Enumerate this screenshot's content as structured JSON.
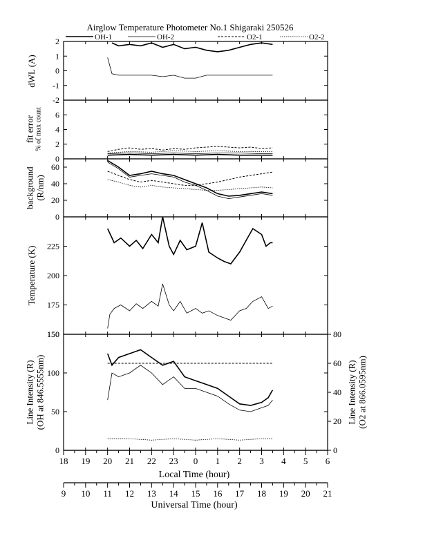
{
  "title": "Airglow Temperature Photometer No.1 Shigaraki 250526",
  "legend": [
    {
      "name": "OH-1",
      "dash": "",
      "width": 1.6
    },
    {
      "name": "OH-2",
      "dash": "",
      "width": 0.8
    },
    {
      "name": "O2-1",
      "dash": "3,2",
      "width": 1.0
    },
    {
      "name": "O2-2",
      "dash": "1.5,1.5",
      "width": 0.8
    }
  ],
  "axes": {
    "local_time_label": "Local Time (hour)",
    "local_time_ticks": [
      "18",
      "19",
      "20",
      "21",
      "22",
      "23",
      "0",
      "1",
      "2",
      "3",
      "4",
      "5",
      "6"
    ],
    "universal_time_label": "Universal Time (hour)",
    "universal_time_ticks": [
      "9",
      "10",
      "11",
      "12",
      "13",
      "14",
      "15",
      "16",
      "17",
      "18",
      "19",
      "20",
      "21"
    ]
  },
  "chart_data": [
    {
      "type": "line",
      "panel": "dwl",
      "ylabel": "dWL (A)",
      "ylim": [
        -2,
        2
      ],
      "yticks": [
        "2",
        "1",
        "0",
        "-1",
        "-2"
      ],
      "x_unit": "local time (hour)",
      "series": [
        {
          "name": "OH-1",
          "x": [
            20.2,
            20.5,
            21.0,
            21.5,
            22.0,
            22.5,
            23.0,
            23.5,
            0.0,
            0.5,
            1.0,
            1.5,
            2.0,
            2.5,
            3.0,
            3.5
          ],
          "values": [
            1.9,
            1.7,
            1.8,
            1.7,
            1.9,
            1.6,
            1.8,
            1.5,
            1.6,
            1.4,
            1.3,
            1.4,
            1.6,
            1.8,
            1.9,
            1.8
          ]
        },
        {
          "name": "OH-2",
          "x": [
            20.0,
            20.2,
            20.5,
            21.0,
            21.5,
            22.0,
            22.5,
            23.0,
            23.5,
            0.0,
            0.5,
            1.0,
            1.5,
            2.0,
            2.5,
            3.0,
            3.5
          ],
          "values": [
            0.9,
            -0.2,
            -0.3,
            -0.3,
            -0.3,
            -0.3,
            -0.4,
            -0.3,
            -0.5,
            -0.5,
            -0.3,
            -0.3,
            -0.3,
            -0.3,
            -0.3,
            -0.3,
            -0.3
          ]
        }
      ]
    },
    {
      "type": "line",
      "panel": "fit_error",
      "ylabel": "fit error % of max count",
      "ylim": [
        0,
        8
      ],
      "yticks": [
        "6",
        "4",
        "2",
        "0"
      ],
      "series": [
        {
          "name": "OH-1",
          "x": [
            20.0,
            21.0,
            22.0,
            23.0,
            0.0,
            1.0,
            2.0,
            3.0,
            3.5
          ],
          "values": [
            0.5,
            0.6,
            0.5,
            0.6,
            0.5,
            0.6,
            0.5,
            0.5,
            0.5
          ]
        },
        {
          "name": "OH-2",
          "x": [
            20.0,
            21.0,
            22.0,
            23.0,
            0.0,
            1.0,
            2.0,
            3.0,
            3.5
          ],
          "values": [
            0.7,
            0.8,
            0.7,
            0.8,
            0.7,
            0.8,
            0.8,
            0.7,
            0.7
          ]
        },
        {
          "name": "O2-1",
          "x": [
            20.0,
            20.5,
            21.0,
            21.5,
            22.0,
            22.5,
            23.0,
            23.5,
            0.0,
            0.5,
            1.0,
            1.5,
            2.0,
            2.5,
            3.0,
            3.5
          ],
          "values": [
            1.0,
            1.3,
            1.5,
            1.3,
            1.4,
            1.2,
            1.4,
            1.3,
            1.5,
            1.6,
            1.7,
            1.6,
            1.5,
            1.6,
            1.4,
            1.5
          ]
        },
        {
          "name": "O2-2",
          "x": [
            20.0,
            21.0,
            22.0,
            23.0,
            0.0,
            1.0,
            2.0,
            3.0,
            3.5
          ],
          "values": [
            0.8,
            1.0,
            0.9,
            1.1,
            1.0,
            1.1,
            1.0,
            1.0,
            1.0
          ]
        }
      ]
    },
    {
      "type": "line",
      "panel": "background",
      "ylabel": "background (R/nm)",
      "ylim": [
        0,
        70
      ],
      "yticks": [
        "60",
        "40",
        "20",
        "0"
      ],
      "series": [
        {
          "name": "OH-1",
          "x": [
            20.0,
            20.5,
            21.0,
            21.5,
            22.0,
            22.5,
            23.0,
            23.5,
            0.0,
            0.5,
            1.0,
            1.5,
            2.0,
            2.5,
            3.0,
            3.5
          ],
          "values": [
            68,
            60,
            50,
            52,
            55,
            52,
            50,
            45,
            40,
            35,
            28,
            25,
            26,
            28,
            30,
            28
          ]
        },
        {
          "name": "OH-2",
          "x": [
            20.0,
            20.5,
            21.0,
            21.5,
            22.0,
            22.5,
            23.0,
            23.5,
            0.0,
            0.5,
            1.0,
            1.5,
            2.0,
            2.5,
            3.0,
            3.5
          ],
          "values": [
            66,
            58,
            48,
            50,
            52,
            50,
            48,
            42,
            38,
            32,
            25,
            22,
            24,
            26,
            28,
            26
          ]
        },
        {
          "name": "O2-1",
          "x": [
            20.0,
            20.5,
            21.0,
            21.5,
            22.0,
            22.5,
            23.0,
            23.5,
            0.0,
            0.5,
            1.0,
            1.5,
            2.0,
            2.5,
            3.0,
            3.5
          ],
          "values": [
            55,
            50,
            45,
            42,
            44,
            42,
            40,
            38,
            38,
            40,
            42,
            45,
            48,
            50,
            52,
            54
          ]
        },
        {
          "name": "O2-2",
          "x": [
            20.0,
            20.5,
            21.0,
            21.5,
            22.0,
            22.5,
            23.0,
            23.5,
            0.0,
            0.5,
            1.0,
            1.5,
            2.0,
            2.5,
            3.0,
            3.5
          ],
          "values": [
            45,
            42,
            38,
            36,
            38,
            36,
            35,
            34,
            33,
            32,
            32,
            33,
            34,
            35,
            36,
            35
          ]
        }
      ]
    },
    {
      "type": "line",
      "panel": "temperature",
      "ylabel": "Temperature (K)",
      "ylim": [
        150,
        250
      ],
      "yticks": [
        "225",
        "200",
        "175",
        "150"
      ],
      "series": [
        {
          "name": "OH-1",
          "x": [
            20.0,
            20.3,
            20.6,
            21.0,
            21.3,
            21.6,
            22.0,
            22.3,
            22.5,
            22.8,
            23.0,
            23.3,
            23.6,
            0.0,
            0.3,
            0.6,
            1.0,
            1.3,
            1.6,
            2.0,
            2.3,
            2.6,
            3.0,
            3.2,
            3.4,
            3.5
          ],
          "values": [
            240,
            228,
            232,
            225,
            230,
            223,
            235,
            228,
            250,
            225,
            218,
            230,
            222,
            225,
            245,
            220,
            215,
            212,
            210,
            220,
            230,
            240,
            235,
            225,
            228,
            228
          ]
        },
        {
          "name": "OH-2",
          "x": [
            20.0,
            20.1,
            20.3,
            20.6,
            21.0,
            21.3,
            21.6,
            22.0,
            22.3,
            22.5,
            22.8,
            23.0,
            23.3,
            23.6,
            0.0,
            0.3,
            0.6,
            1.0,
            1.3,
            1.6,
            2.0,
            2.3,
            2.6,
            3.0,
            3.3,
            3.5
          ],
          "values": [
            155,
            167,
            172,
            175,
            170,
            176,
            172,
            178,
            174,
            193,
            175,
            170,
            178,
            168,
            172,
            168,
            170,
            166,
            164,
            162,
            170,
            172,
            178,
            182,
            172,
            174
          ]
        }
      ]
    },
    {
      "type": "line",
      "panel": "line_intensity",
      "ylabel": "Line Intensity (R) (OH at 846.5555nm)",
      "y2label": "Line Intensity (R) (O2 at 866.0595nm)",
      "ylim": [
        0,
        150
      ],
      "y2lim": [
        0,
        80
      ],
      "yticks": [
        "150",
        "100",
        "50",
        "0"
      ],
      "y2ticks": [
        "80",
        "60",
        "40",
        "20",
        "0"
      ],
      "series": [
        {
          "name": "OH-1",
          "x": [
            20.0,
            20.2,
            20.5,
            21.0,
            21.5,
            22.0,
            22.5,
            23.0,
            23.5,
            0.0,
            0.5,
            1.0,
            1.5,
            2.0,
            2.5,
            3.0,
            3.3,
            3.5
          ],
          "values": [
            125,
            110,
            120,
            125,
            130,
            120,
            110,
            115,
            95,
            90,
            85,
            80,
            70,
            60,
            58,
            62,
            68,
            78
          ]
        },
        {
          "name": "OH-2",
          "x": [
            20.0,
            20.2,
            20.5,
            21.0,
            21.5,
            22.0,
            22.5,
            23.0,
            23.5,
            0.0,
            0.5,
            1.0,
            1.5,
            2.0,
            2.5,
            3.0,
            3.3,
            3.5
          ],
          "values": [
            65,
            100,
            95,
            100,
            110,
            100,
            85,
            95,
            80,
            80,
            75,
            70,
            60,
            52,
            50,
            55,
            58,
            65
          ]
        },
        {
          "name": "O2-1",
          "axis": "right",
          "x": [
            20.0,
            21.0,
            22.0,
            23.0,
            0.0,
            1.0,
            2.0,
            3.0,
            3.5
          ],
          "values": [
            60,
            60,
            60,
            60,
            60,
            60,
            60,
            60,
            60
          ]
        },
        {
          "name": "O2-2",
          "axis": "right",
          "x": [
            20.0,
            21.0,
            22.0,
            23.0,
            0.0,
            1.0,
            2.0,
            3.0,
            3.5
          ],
          "values": [
            8,
            8,
            7,
            8,
            7,
            8,
            7,
            8,
            8
          ]
        }
      ]
    }
  ]
}
